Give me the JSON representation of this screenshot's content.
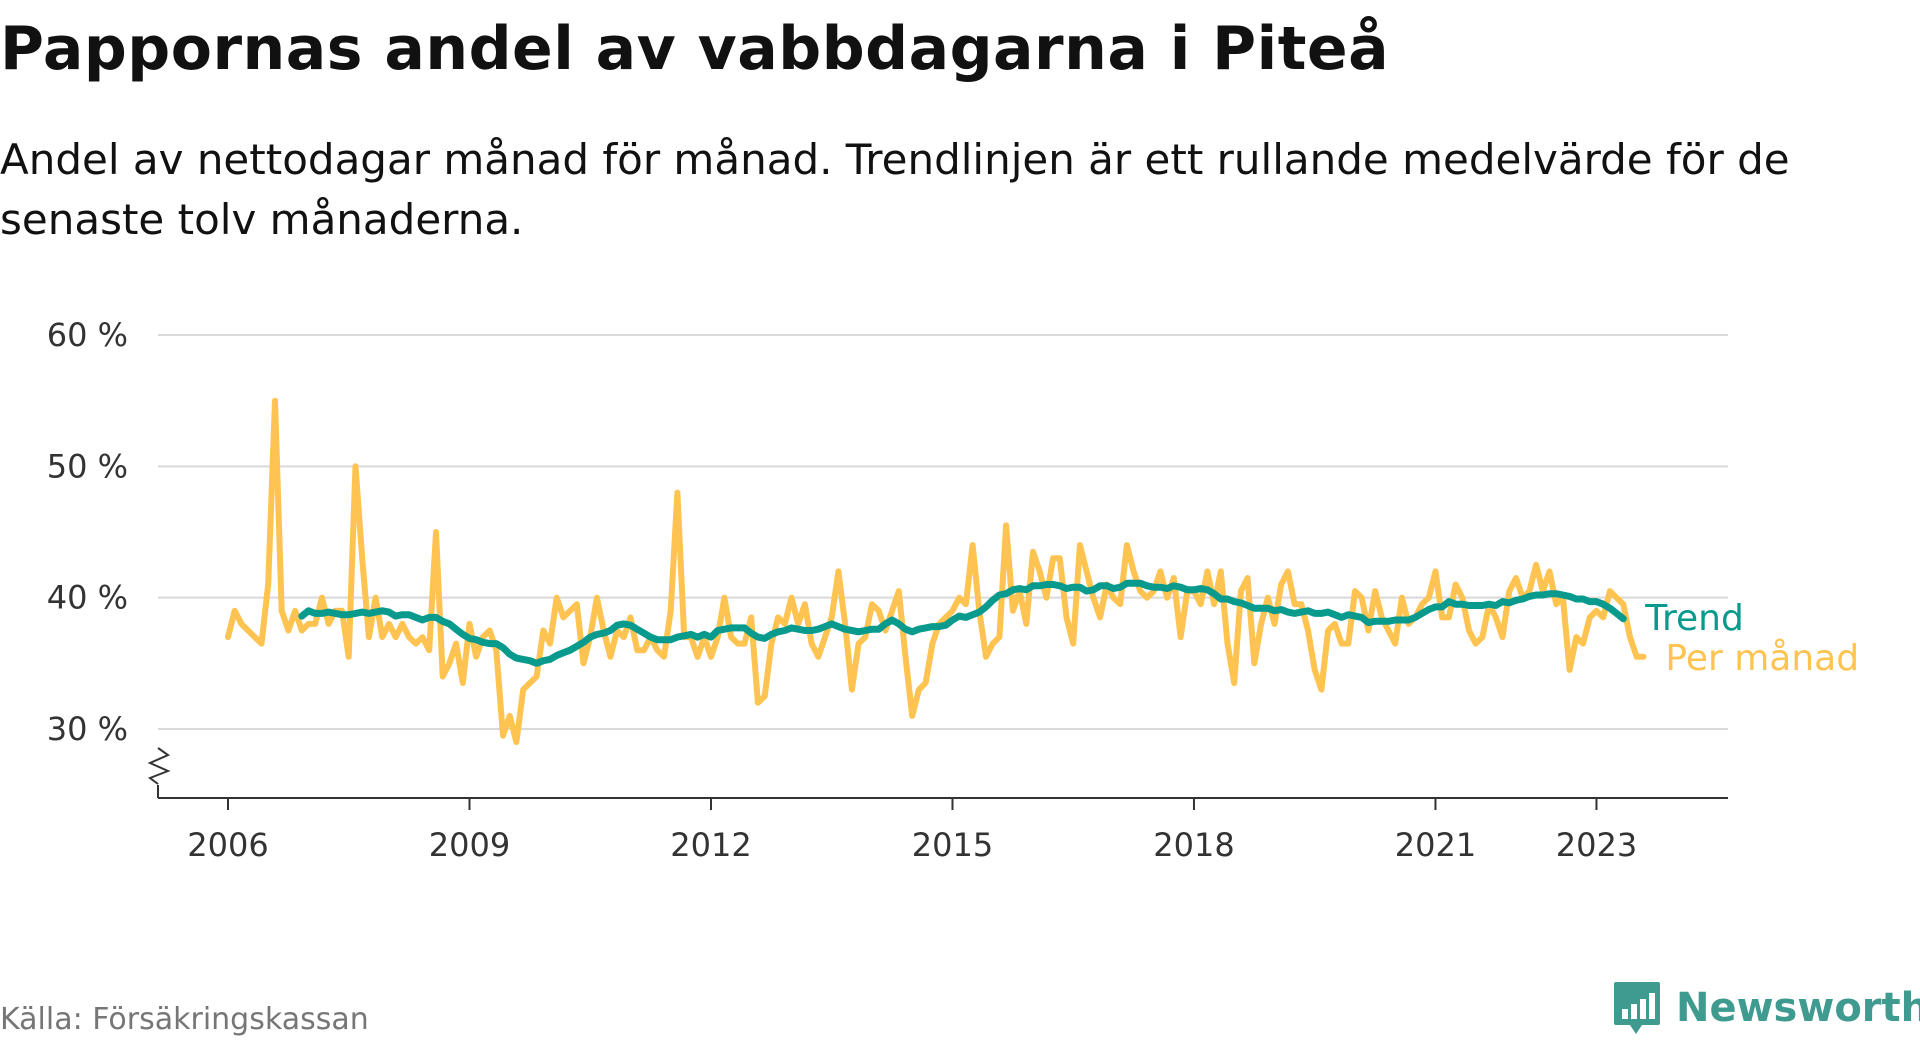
{
  "title": "Pappornas andel av vabbdagarna i Piteå",
  "subtitle": "Andel av nettodagar månad för månad. Trendlinjen är ett rullande medelvärde för de senaste tolv månaderna.",
  "source": "Källa: Försäkringskassan",
  "brand": "Newsworthy",
  "colors": {
    "monthly": "#fec350",
    "trend": "#079a8d",
    "grid": "#d9d9d9",
    "axis": "#333333",
    "brand": "#3f9a8f"
  },
  "chart_data": {
    "type": "line",
    "x_type": "month",
    "ylim": [
      25,
      60
    ],
    "y_ticks": [
      30,
      40,
      50,
      60
    ],
    "y_tick_labels": [
      "30 %",
      "40 %",
      "50 %",
      "60 %"
    ],
    "y_axis_break": true,
    "x_ticks": [
      "2006-01",
      "2009-01",
      "2012-01",
      "2015-01",
      "2018-01",
      "2021-01",
      "2023-01"
    ],
    "x_tick_labels": [
      "2006",
      "2009",
      "2012",
      "2015",
      "2018",
      "2021",
      "2023"
    ],
    "grid": true,
    "legend": "end-of-line labels",
    "series": [
      {
        "name": "Per månad",
        "start": "2006-01",
        "values": [
          37,
          39,
          38,
          37.5,
          37,
          36.5,
          41,
          55,
          39,
          37.5,
          39,
          37.5,
          38,
          38,
          40,
          38,
          39,
          39,
          35.5,
          50,
          43,
          37,
          40,
          37,
          38,
          37,
          38,
          37,
          36.5,
          37,
          36,
          45,
          34,
          35,
          36.5,
          33.5,
          38,
          35.5,
          37,
          37.5,
          36,
          29.5,
          31,
          29,
          33,
          33.5,
          34,
          37.5,
          36.5,
          40,
          38.5,
          39,
          39.5,
          35,
          37,
          40,
          37.5,
          35.5,
          37.5,
          37,
          38.5,
          36,
          36,
          37,
          36,
          35.5,
          39,
          48,
          37,
          37,
          35.5,
          37,
          35.5,
          37,
          40,
          37,
          36.5,
          36.5,
          38.5,
          32,
          32.5,
          36.5,
          38.5,
          38,
          40,
          38,
          39.5,
          36.5,
          35.5,
          37,
          38.5,
          42,
          38,
          33,
          36.5,
          37,
          39.5,
          39,
          37.5,
          39,
          40.5,
          35.5,
          31,
          33,
          33.5,
          36.5,
          38,
          38.5,
          39,
          40,
          39.5,
          44,
          39,
          35.5,
          36.5,
          37,
          45.5,
          39,
          40.5,
          38,
          43.5,
          42,
          40,
          43,
          43,
          38.5,
          36.5,
          44,
          42,
          40,
          38.5,
          41,
          40,
          39.5,
          44,
          42,
          40.5,
          40,
          40.5,
          42,
          40,
          41.5,
          37,
          40.5,
          40.5,
          39.5,
          42,
          39.5,
          42,
          36.5,
          33.5,
          40.5,
          41.5,
          35,
          38,
          40,
          38,
          41,
          42,
          39.5,
          39.5,
          37.5,
          34.5,
          33,
          37.5,
          38,
          36.5,
          36.5,
          40.5,
          40,
          37.5,
          40.5,
          38.5,
          37.5,
          36.5,
          40,
          38,
          38.5,
          39.5,
          40,
          42,
          38.5,
          38.5,
          41,
          40,
          37.5,
          36.5,
          37,
          39.5,
          38.5,
          37,
          40.5,
          41.5,
          40,
          40.5,
          42.5,
          40.5,
          42,
          39.5,
          40,
          34.5,
          37,
          36.5,
          38.5,
          39,
          38.5,
          40.5,
          40,
          39.5,
          37,
          35.5,
          35.5
        ]
      },
      {
        "name": "Trend",
        "start": "2006-12",
        "values": [
          38.6,
          39,
          38.8,
          38.8,
          38.9,
          38.8,
          38.7,
          38.7,
          38.8,
          38.9,
          38.8,
          38.9,
          39,
          38.9,
          38.6,
          38.7,
          38.7,
          38.5,
          38.3,
          38.5,
          38.5,
          38.2,
          38,
          37.6,
          37.2,
          36.9,
          36.8,
          36.6,
          36.5,
          36.5,
          36.2,
          35.7,
          35.4,
          35.3,
          35.2,
          35,
          35.2,
          35.3,
          35.6,
          35.8,
          36,
          36.3,
          36.6,
          37,
          37.2,
          37.3,
          37.5,
          37.9,
          38,
          37.9,
          37.6,
          37.3,
          37,
          36.8,
          36.8,
          36.8,
          37,
          37.1,
          37.2,
          37,
          37.2,
          37,
          37.5,
          37.6,
          37.7,
          37.7,
          37.7,
          37.3,
          37,
          36.9,
          37.2,
          37.4,
          37.5,
          37.7,
          37.6,
          37.5,
          37.5,
          37.6,
          37.8,
          38,
          37.8,
          37.6,
          37.5,
          37.4,
          37.5,
          37.6,
          37.6,
          38,
          38.3,
          38,
          37.6,
          37.4,
          37.6,
          37.7,
          37.8,
          37.8,
          37.9,
          38.3,
          38.6,
          38.5,
          38.7,
          38.9,
          39.3,
          39.8,
          40.2,
          40.3,
          40.6,
          40.7,
          40.6,
          40.9,
          40.9,
          41,
          41,
          40.9,
          40.7,
          40.8,
          40.8,
          40.5,
          40.6,
          40.9,
          40.9,
          40.7,
          40.8,
          41.1,
          41.1,
          41.1,
          40.9,
          40.8,
          40.8,
          40.7,
          40.9,
          40.8,
          40.6,
          40.6,
          40.7,
          40.6,
          40.3,
          39.9,
          39.9,
          39.7,
          39.6,
          39.4,
          39.2,
          39.2,
          39.2,
          39,
          39.1,
          38.9,
          38.8,
          38.9,
          39,
          38.8,
          38.8,
          38.9,
          38.7,
          38.5,
          38.7,
          38.6,
          38.5,
          38.1,
          38.2,
          38.2,
          38.2,
          38.3,
          38.3,
          38.3,
          38.5,
          38.8,
          39.1,
          39.3,
          39.3,
          39.7,
          39.5,
          39.5,
          39.4,
          39.4,
          39.4,
          39.5,
          39.4,
          39.7,
          39.6,
          39.8,
          39.9,
          40.1,
          40.2,
          40.2,
          40.3,
          40.3,
          40.2,
          40.1,
          39.9,
          39.9,
          39.7,
          39.7,
          39.5,
          39.2,
          38.8,
          38.4
        ]
      }
    ]
  }
}
